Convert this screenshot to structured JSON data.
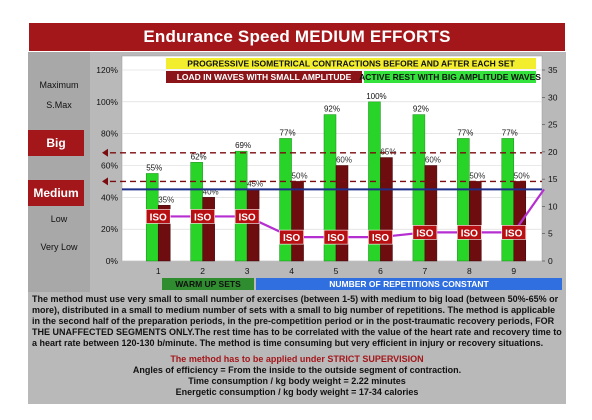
{
  "title": "Endurance Speed MEDIUM EFFORTS",
  "banner_top": "PROGRESSIVE ISOMETRICAL CONTRACTIONS BEFORE AND AFTER EACH SET",
  "banner_left": "LOAD IN WAVES WITH SMALL  AMPLITUDE",
  "banner_right": "ACTIVE REST WITH BIG AMPLITUDE WAVES",
  "left_scale": {
    "maximum": "Maximum",
    "smax": "S.Max",
    "big": "Big",
    "medium": "Medium",
    "low": "Low",
    "very_low": "Very Low"
  },
  "bottom_labels": {
    "warm_up": "WARM UP SETS",
    "repetitions": "NUMBER OF REPETITIONS CONSTANT"
  },
  "colors": {
    "dark_red": "#a3171b",
    "green": "#28d428",
    "iso_purple": "#b52fd0",
    "blue_line": "#1e2f8a",
    "banner_yellow": "#f2ee2e",
    "banner_blue": "#2f6fe0"
  },
  "chart_data": {
    "type": "bar",
    "categories": [
      "1",
      "2",
      "3",
      "4",
      "5",
      "6",
      "7",
      "8",
      "9"
    ],
    "yticks_left": [
      "0%",
      "20%",
      "40%",
      "60%",
      "80%",
      "100%",
      "120%"
    ],
    "yticks_right": [
      "0",
      "5",
      "10",
      "15",
      "20",
      "25",
      "30",
      "35"
    ],
    "ylim_left": [
      0,
      120
    ],
    "ylim_right": [
      0,
      35
    ],
    "series": [
      {
        "values": [
          55,
          62,
          69,
          77,
          92,
          100,
          92,
          77,
          77
        ],
        "labels": [
          "55%",
          "62%",
          "69%",
          "77%",
          "92%",
          "100%",
          "92%",
          "77%",
          "77%"
        ]
      },
      {
        "values": [
          35,
          40,
          45,
          50,
          60,
          65,
          60,
          50,
          50
        ],
        "labels": [
          "35%",
          "40%",
          "45%",
          "50%",
          "60%",
          "65%",
          "60%",
          "50%",
          "50%"
        ]
      }
    ],
    "iso_label": "ISO",
    "iso_line": [
      28,
      28,
      28,
      15,
      15,
      15,
      18,
      18,
      18
    ],
    "dashed_lines": [
      68,
      50
    ],
    "solid_line": 45
  },
  "description": {
    "p1": "The method must use very small to small number of exercises (between 1-5) with medium to  big load (between 50%-65% or more), distributed in a small to medium number of sets with a small to big number of repetitions. The method is applicable in the second half of the preparation periods, in the pre-competition period or in the post-traumatic recovery periods, FOR THE UNAFFECTED SEGMENTS ONLY.The rest time has to be correlated with the value of the heart rate and recovery time to a heart rate between 120-130 b/minute. The method is time consuming but very efficient in injury or recovery situations.",
    "supervision": "The method has to be applied under  STRICT  SUPERVISION",
    "angles": "Angles of efficiency =  From the inside to the outside segment of contraction.",
    "time": "Time consumption /  kg body weight =  2.22  minutes",
    "energy": "Energetic consumption / kg body weight =  17-34 calories"
  }
}
